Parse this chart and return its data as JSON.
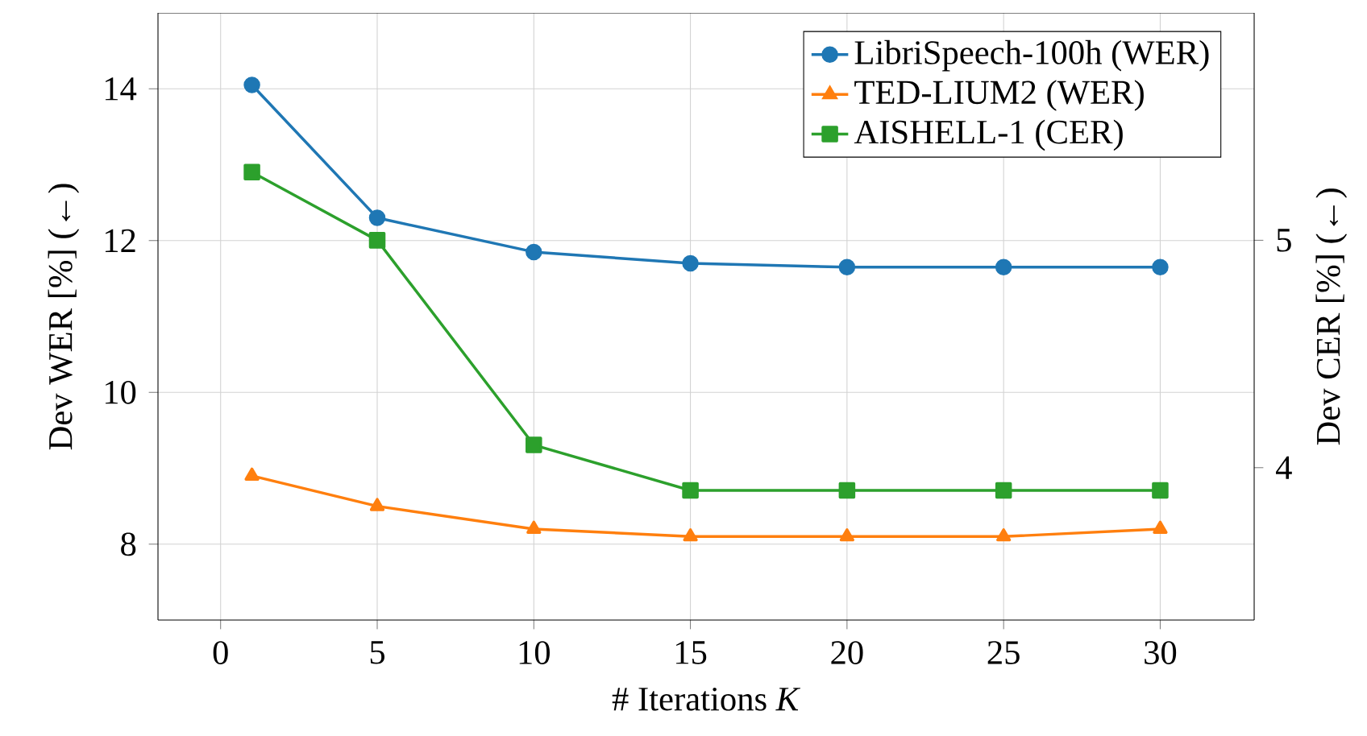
{
  "chart_data": {
    "type": "line",
    "xlabel": "# Iterations *K*",
    "ylabel": "Dev WER [%] (←)",
    "y2label": "Dev CER [%] (←)",
    "x": [
      1,
      5,
      10,
      15,
      20,
      25,
      30
    ],
    "series": [
      {
        "name": "LibriSpeech-100h (WER)",
        "color": "#1f77b4",
        "marker": "circle",
        "values": [
          14.05,
          12.3,
          11.85,
          11.7,
          11.65,
          11.65,
          11.65
        ]
      },
      {
        "name": "TED-LIUM2 (WER)",
        "color": "#ff7f0e",
        "marker": "triangle",
        "values": [
          8.9,
          8.5,
          8.2,
          8.1,
          8.1,
          8.1,
          8.2
        ]
      },
      {
        "name": "AISHELL-1 (CER)",
        "color": "#2ca02c",
        "marker": "square",
        "axis": "y2",
        "values": [
          5.3,
          5.0,
          4.1,
          3.9,
          3.9,
          3.9,
          3.9
        ]
      }
    ],
    "xlim": [
      -2,
      33
    ],
    "xticks": [
      0,
      5,
      10,
      15,
      20,
      25,
      30
    ],
    "ylim": [
      7,
      15
    ],
    "yticks": [
      8,
      10,
      12,
      14
    ],
    "y2lim": [
      3.33,
      6
    ],
    "y2ticks": [
      4,
      5
    ],
    "grid": true,
    "legend": "top right",
    "line_style": "solid"
  }
}
